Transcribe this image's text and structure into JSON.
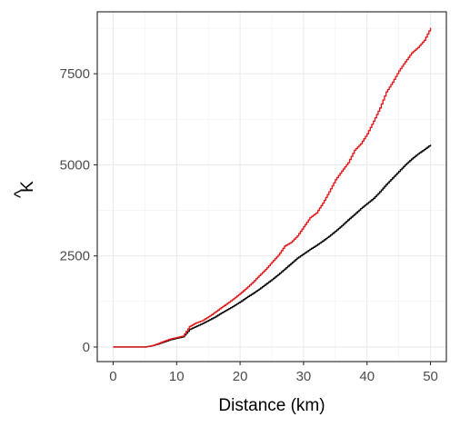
{
  "chart_data": {
    "type": "line",
    "xlabel": "Distance (km)",
    "ylabel": "K",
    "ylabel_accent": "^",
    "xlim": [
      -2.5,
      52.5
    ],
    "ylim": [
      -400,
      9200
    ],
    "grid": true,
    "legend": "none",
    "x_ticks": [
      0,
      10,
      20,
      30,
      40,
      50
    ],
    "y_ticks": [
      0,
      2500,
      5000,
      7500
    ],
    "x_tick_labels": [
      "0",
      "10",
      "20",
      "30",
      "40",
      "50"
    ],
    "y_tick_labels": [
      "0",
      "2500",
      "5000",
      "7500"
    ],
    "series": [
      {
        "color": "#000000",
        "x": [
          0,
          2,
          4,
          5,
          6,
          7,
          8,
          9,
          10,
          11,
          12,
          13,
          14,
          15,
          16,
          17,
          18,
          19,
          20,
          21,
          22,
          23,
          24,
          25,
          26,
          27,
          28,
          29,
          30,
          31,
          32,
          33,
          34,
          35,
          36,
          37,
          38,
          39,
          40,
          41,
          42,
          43,
          44,
          45,
          46,
          47,
          48,
          49,
          50
        ],
        "y": [
          0,
          0,
          0,
          0,
          30,
          80,
          140,
          200,
          240,
          280,
          480,
          560,
          640,
          730,
          820,
          930,
          1030,
          1130,
          1240,
          1360,
          1470,
          1590,
          1720,
          1850,
          1990,
          2140,
          2290,
          2440,
          2560,
          2680,
          2790,
          2910,
          3040,
          3180,
          3330,
          3490,
          3640,
          3800,
          3940,
          4080,
          4260,
          4460,
          4640,
          4820,
          5000,
          5160,
          5300,
          5420,
          5550
        ]
      },
      {
        "color": "#e31a1c",
        "x": [
          0,
          2,
          4,
          5,
          6,
          7,
          8,
          9,
          10,
          11,
          12,
          13,
          14,
          15,
          16,
          17,
          18,
          19,
          20,
          21,
          22,
          23,
          24,
          25,
          26,
          27,
          28,
          29,
          30,
          31,
          32,
          33,
          34,
          35,
          36,
          37,
          38,
          39,
          40,
          41,
          42,
          43,
          44,
          45,
          46,
          47,
          48,
          49,
          50
        ],
        "y": [
          0,
          0,
          0,
          0,
          30,
          90,
          160,
          220,
          260,
          300,
          560,
          660,
          720,
          830,
          950,
          1080,
          1200,
          1330,
          1470,
          1620,
          1780,
          1960,
          2130,
          2330,
          2520,
          2770,
          2870,
          3050,
          3300,
          3550,
          3680,
          3950,
          4260,
          4590,
          4830,
          5060,
          5400,
          5580,
          5850,
          6200,
          6560,
          7000,
          7270,
          7580,
          7830,
          8070,
          8220,
          8420,
          8760
        ]
      }
    ]
  }
}
